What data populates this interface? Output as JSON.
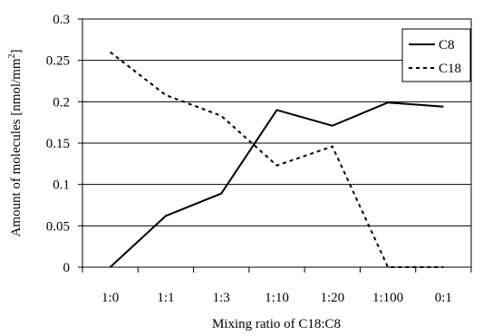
{
  "chart_data": {
    "type": "line",
    "categories": [
      "1:0",
      "1:1",
      "1:3",
      "1:10",
      "1:20",
      "1:100",
      "0:1"
    ],
    "series": [
      {
        "name": "C8",
        "style": "solid",
        "color": "#000000",
        "values": [
          0.0,
          0.062,
          0.089,
          0.19,
          0.171,
          0.199,
          0.194
        ]
      },
      {
        "name": "C18",
        "style": "dashed",
        "color": "#000000",
        "values": [
          0.26,
          0.208,
          0.183,
          0.123,
          0.146,
          0.0,
          0.0
        ]
      }
    ],
    "xlabel": "Mixing ratio of C18:C8",
    "ylabel": "Amount of molecules [nmol/mm",
    "ylabel_superscript": "2",
    "ylabel_suffix": "]",
    "ylim": [
      0,
      0.3
    ],
    "yticks": [
      "0",
      "0.05",
      "0.1",
      "0.15",
      "0.2",
      "0.25",
      "0.3"
    ],
    "ytick_values": [
      0,
      0.05,
      0.1,
      0.15,
      0.2,
      0.25,
      0.3
    ],
    "grid": "horizontal",
    "legend_position": "top-right"
  }
}
